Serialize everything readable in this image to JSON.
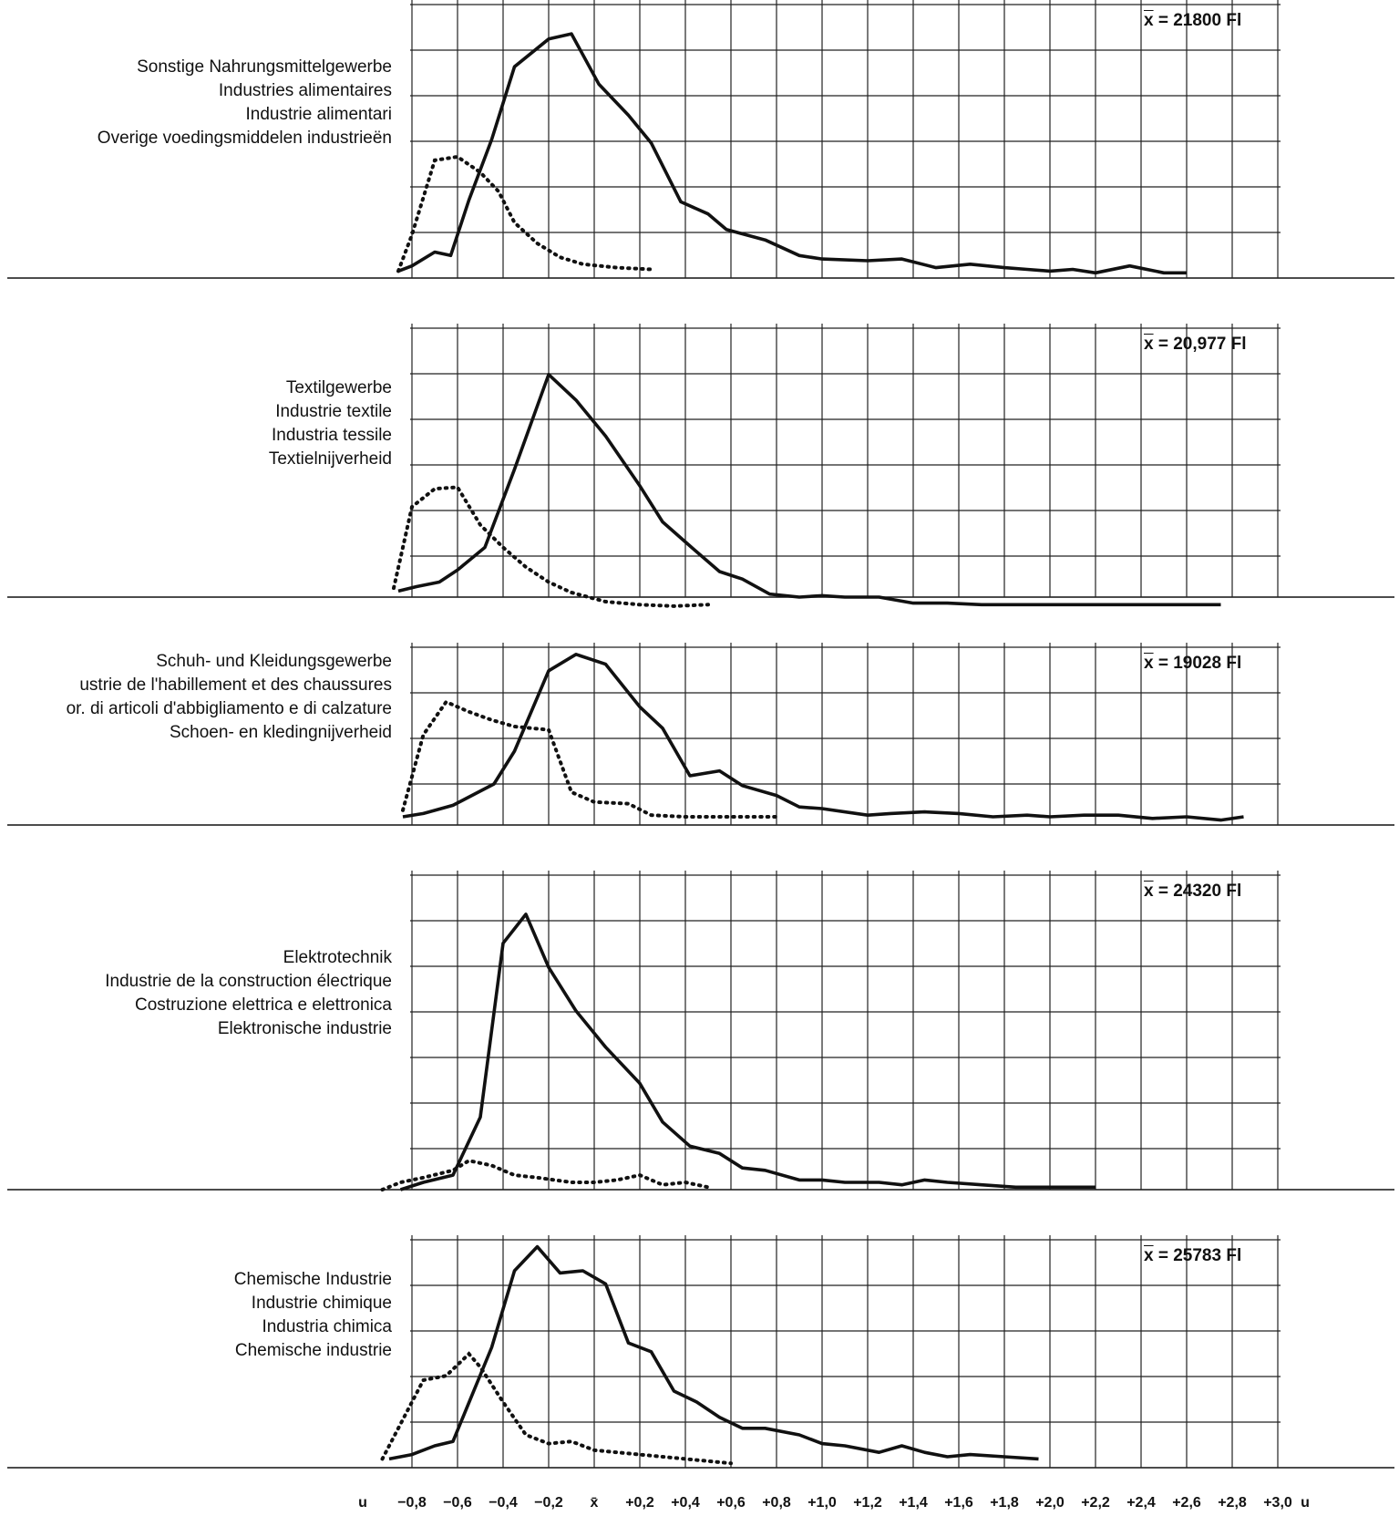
{
  "chart_data": {
    "type": "line",
    "axis": {
      "unit_label": "u",
      "center_label": "x̄",
      "tick_values": [
        -0.8,
        -0.6,
        -0.4,
        -0.2,
        0,
        0.2,
        0.4,
        0.6,
        0.8,
        1.0,
        1.2,
        1.4,
        1.6,
        1.8,
        2.0,
        2.2,
        2.4,
        2.6,
        2.8,
        3.0
      ],
      "tick_labels": [
        "−0,8",
        "−0,6",
        "−0,4",
        "−0,2",
        "x̄",
        "+0,2",
        "+0,4",
        "+0,6",
        "+0,8",
        "+1,0",
        "+1,2",
        "+1,4",
        "+1,6",
        "+1,8",
        "+2,0",
        "+2,2",
        "+2,4",
        "+2,6",
        "+2,8",
        "+3,0"
      ],
      "xlim": [
        -0.87,
        3.05
      ]
    },
    "grid": true,
    "panels": [
      {
        "labels": [
          "Sonstige Nahrungsmittelgewerbe",
          "Industries alimentaires",
          "Industrie alimentari",
          "Overige voedingsmiddelen industrieën"
        ],
        "mean": "= 21800 Fl",
        "solid": [
          [
            -0.86,
            0.04
          ],
          [
            -0.8,
            0.07
          ],
          [
            -0.7,
            0.15
          ],
          [
            -0.63,
            0.13
          ],
          [
            -0.55,
            0.45
          ],
          [
            -0.45,
            0.8
          ],
          [
            -0.35,
            1.22
          ],
          [
            -0.2,
            1.38
          ],
          [
            -0.1,
            1.41
          ],
          [
            0.02,
            1.12
          ],
          [
            0.15,
            0.94
          ],
          [
            0.25,
            0.78
          ],
          [
            0.38,
            0.44
          ],
          [
            0.5,
            0.37
          ],
          [
            0.58,
            0.28
          ],
          [
            0.75,
            0.22
          ],
          [
            0.9,
            0.13
          ],
          [
            1.0,
            0.11
          ],
          [
            1.2,
            0.1
          ],
          [
            1.35,
            0.11
          ],
          [
            1.5,
            0.06
          ],
          [
            1.65,
            0.08
          ],
          [
            1.8,
            0.06
          ],
          [
            1.9,
            0.05
          ],
          [
            2.0,
            0.04
          ],
          [
            2.1,
            0.05
          ],
          [
            2.2,
            0.03
          ],
          [
            2.35,
            0.07
          ],
          [
            2.5,
            0.03
          ],
          [
            2.6,
            0.03
          ]
        ],
        "dotted": [
          [
            -0.86,
            0.04
          ],
          [
            -0.8,
            0.25
          ],
          [
            -0.7,
            0.68
          ],
          [
            -0.6,
            0.7
          ],
          [
            -0.5,
            0.61
          ],
          [
            -0.42,
            0.5
          ],
          [
            -0.35,
            0.32
          ],
          [
            -0.25,
            0.2
          ],
          [
            -0.15,
            0.12
          ],
          [
            -0.05,
            0.08
          ],
          [
            0.1,
            0.06
          ],
          [
            0.25,
            0.05
          ]
        ]
      },
      {
        "labels": [
          "Textilgewerbe",
          "Industrie textile",
          "Industria tessile",
          "Textielnijverheid"
        ],
        "mean": "= 20,977 Fl",
        "solid": [
          [
            -0.86,
            0.04
          ],
          [
            -0.78,
            0.07
          ],
          [
            -0.68,
            0.1
          ],
          [
            -0.6,
            0.18
          ],
          [
            -0.48,
            0.33
          ],
          [
            -0.35,
            0.85
          ],
          [
            -0.2,
            1.48
          ],
          [
            -0.08,
            1.31
          ],
          [
            0.05,
            1.07
          ],
          [
            0.2,
            0.74
          ],
          [
            0.3,
            0.5
          ],
          [
            0.42,
            0.34
          ],
          [
            0.55,
            0.17
          ],
          [
            0.65,
            0.12
          ],
          [
            0.77,
            0.02
          ],
          [
            0.9,
            0.0
          ],
          [
            1.0,
            0.01
          ],
          [
            1.1,
            0.0
          ],
          [
            1.25,
            0.0
          ],
          [
            1.4,
            -0.04
          ],
          [
            1.55,
            -0.04
          ],
          [
            1.7,
            -0.05
          ],
          [
            1.9,
            -0.05
          ],
          [
            2.1,
            -0.05
          ],
          [
            2.3,
            -0.05
          ],
          [
            2.5,
            -0.05
          ],
          [
            2.75,
            -0.05
          ]
        ],
        "dotted": [
          [
            -0.88,
            0.06
          ],
          [
            -0.8,
            0.6
          ],
          [
            -0.7,
            0.72
          ],
          [
            -0.6,
            0.73
          ],
          [
            -0.5,
            0.48
          ],
          [
            -0.4,
            0.33
          ],
          [
            -0.3,
            0.2
          ],
          [
            -0.2,
            0.1
          ],
          [
            -0.1,
            0.03
          ],
          [
            0.05,
            -0.03
          ],
          [
            0.2,
            -0.05
          ],
          [
            0.35,
            -0.06
          ],
          [
            0.5,
            -0.05
          ]
        ]
      },
      {
        "labels": [
          "Schuh- und Kleidungsgewerbe",
          "ustrie de l'habillement et des chaussures",
          "or. di articoli d'abbigliamento e di calzature",
          "Schoen- en kledingnijverheid"
        ],
        "mean": "= 19028 Fl",
        "solid": [
          [
            -0.84,
            0.05
          ],
          [
            -0.75,
            0.07
          ],
          [
            -0.62,
            0.12
          ],
          [
            -0.44,
            0.25
          ],
          [
            -0.35,
            0.45
          ],
          [
            -0.2,
            0.94
          ],
          [
            -0.08,
            1.04
          ],
          [
            0.05,
            0.98
          ],
          [
            0.2,
            0.72
          ],
          [
            0.3,
            0.59
          ],
          [
            0.42,
            0.3
          ],
          [
            0.55,
            0.33
          ],
          [
            0.65,
            0.24
          ],
          [
            0.8,
            0.18
          ],
          [
            0.9,
            0.11
          ],
          [
            1.0,
            0.1
          ],
          [
            1.2,
            0.06
          ],
          [
            1.3,
            0.07
          ],
          [
            1.45,
            0.08
          ],
          [
            1.6,
            0.07
          ],
          [
            1.75,
            0.05
          ],
          [
            1.9,
            0.06
          ],
          [
            2.0,
            0.05
          ],
          [
            2.15,
            0.06
          ],
          [
            2.3,
            0.06
          ],
          [
            2.45,
            0.04
          ],
          [
            2.6,
            0.05
          ],
          [
            2.75,
            0.03
          ],
          [
            2.85,
            0.05
          ]
        ],
        "dotted": [
          [
            -0.84,
            0.09
          ],
          [
            -0.75,
            0.55
          ],
          [
            -0.65,
            0.75
          ],
          [
            -0.55,
            0.69
          ],
          [
            -0.45,
            0.64
          ],
          [
            -0.35,
            0.6
          ],
          [
            -0.2,
            0.58
          ],
          [
            -0.1,
            0.2
          ],
          [
            0.0,
            0.14
          ],
          [
            0.15,
            0.13
          ],
          [
            0.25,
            0.06
          ],
          [
            0.4,
            0.05
          ],
          [
            0.6,
            0.05
          ],
          [
            0.8,
            0.05
          ]
        ]
      },
      {
        "labels": [
          "Elektrotechnik",
          "Industrie de la construction électrique",
          "Costruzione elettrica e elettronica",
          "Elektronische industrie"
        ],
        "mean": "= 24320 Fl",
        "solid": [
          [
            -0.85,
            0.0
          ],
          [
            -0.75,
            0.03
          ],
          [
            -0.62,
            0.06
          ],
          [
            -0.5,
            0.3
          ],
          [
            -0.4,
            1.02
          ],
          [
            -0.3,
            1.14
          ],
          [
            -0.2,
            0.92
          ],
          [
            -0.08,
            0.74
          ],
          [
            0.05,
            0.59
          ],
          [
            0.2,
            0.44
          ],
          [
            0.3,
            0.28
          ],
          [
            0.42,
            0.18
          ],
          [
            0.55,
            0.15
          ],
          [
            0.65,
            0.09
          ],
          [
            0.75,
            0.08
          ],
          [
            0.9,
            0.04
          ],
          [
            1.0,
            0.04
          ],
          [
            1.1,
            0.03
          ],
          [
            1.25,
            0.03
          ],
          [
            1.35,
            0.02
          ],
          [
            1.45,
            0.04
          ],
          [
            1.55,
            0.03
          ],
          [
            1.7,
            0.02
          ],
          [
            1.85,
            0.01
          ],
          [
            2.0,
            0.01
          ],
          [
            2.2,
            0.01
          ]
        ],
        "dotted": [
          [
            -0.93,
            0.0
          ],
          [
            -0.85,
            0.03
          ],
          [
            -0.75,
            0.05
          ],
          [
            -0.62,
            0.08
          ],
          [
            -0.55,
            0.12
          ],
          [
            -0.45,
            0.1
          ],
          [
            -0.35,
            0.06
          ],
          [
            -0.25,
            0.05
          ],
          [
            -0.1,
            0.03
          ],
          [
            0.0,
            0.03
          ],
          [
            0.1,
            0.04
          ],
          [
            0.2,
            0.06
          ],
          [
            0.3,
            0.02
          ],
          [
            0.4,
            0.03
          ],
          [
            0.5,
            0.01
          ]
        ]
      },
      {
        "labels": [
          "Chemische Industrie",
          "Industrie chimique",
          "Industria chimica",
          "Chemische industrie"
        ],
        "mean": "= 25783 Fl",
        "solid": [
          [
            -0.9,
            0.04
          ],
          [
            -0.8,
            0.06
          ],
          [
            -0.7,
            0.1
          ],
          [
            -0.62,
            0.12
          ],
          [
            -0.45,
            0.55
          ],
          [
            -0.35,
            0.9
          ],
          [
            -0.25,
            1.01
          ],
          [
            -0.15,
            0.89
          ],
          [
            -0.05,
            0.9
          ],
          [
            0.05,
            0.84
          ],
          [
            0.15,
            0.57
          ],
          [
            0.25,
            0.53
          ],
          [
            0.35,
            0.35
          ],
          [
            0.45,
            0.3
          ],
          [
            0.55,
            0.23
          ],
          [
            0.65,
            0.18
          ],
          [
            0.75,
            0.18
          ],
          [
            0.9,
            0.15
          ],
          [
            1.0,
            0.11
          ],
          [
            1.1,
            0.1
          ],
          [
            1.25,
            0.07
          ],
          [
            1.35,
            0.1
          ],
          [
            1.45,
            0.07
          ],
          [
            1.55,
            0.05
          ],
          [
            1.65,
            0.06
          ],
          [
            1.8,
            0.05
          ],
          [
            1.95,
            0.04
          ]
        ],
        "dotted": [
          [
            -0.93,
            0.04
          ],
          [
            -0.85,
            0.2
          ],
          [
            -0.75,
            0.4
          ],
          [
            -0.65,
            0.42
          ],
          [
            -0.55,
            0.52
          ],
          [
            -0.5,
            0.46
          ],
          [
            -0.4,
            0.3
          ],
          [
            -0.3,
            0.15
          ],
          [
            -0.2,
            0.11
          ],
          [
            -0.1,
            0.12
          ],
          [
            0.0,
            0.08
          ],
          [
            0.2,
            0.06
          ],
          [
            0.4,
            0.04
          ],
          [
            0.6,
            0.02
          ]
        ]
      }
    ]
  }
}
